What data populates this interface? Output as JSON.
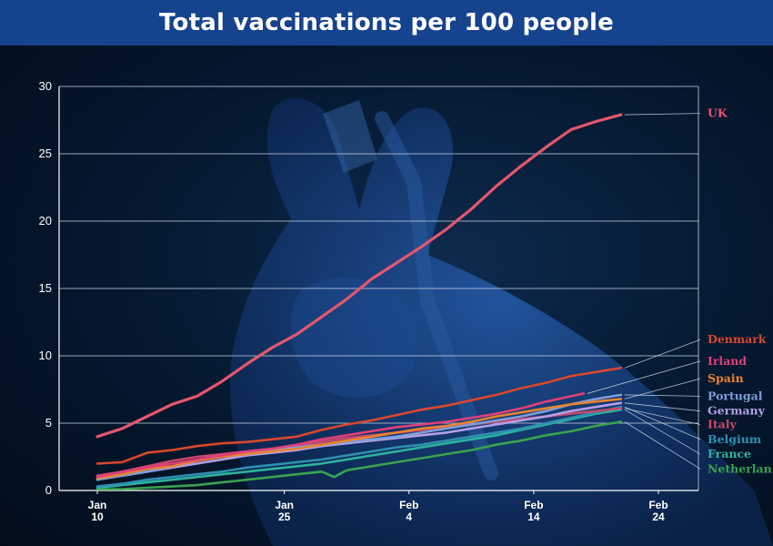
{
  "title": "Total vaccinations per 100 people",
  "chart_data": {
    "type": "line",
    "title": "Total vaccinations per 100 people",
    "xlabel": "",
    "ylabel": "",
    "x_range": [
      10,
      56
    ],
    "ylim": [
      0,
      30
    ],
    "yticks": [
      0,
      5,
      10,
      15,
      20,
      25,
      30
    ],
    "grid": true,
    "legend": "right",
    "xticks": [
      {
        "x": 10,
        "line1": "Jan",
        "line2": "10"
      },
      {
        "x": 25,
        "line1": "Jan",
        "line2": "25"
      },
      {
        "x": 35,
        "line1": "Feb",
        "line2": "4"
      },
      {
        "x": 45,
        "line1": "Feb",
        "line2": "14"
      },
      {
        "x": 55,
        "line1": "Feb",
        "line2": "24"
      }
    ],
    "series": [
      {
        "name": "UK",
        "color": "#e5566e",
        "label_y": 28.0,
        "points": [
          [
            10,
            4.0
          ],
          [
            12,
            4.6
          ],
          [
            14,
            5.5
          ],
          [
            16,
            6.4
          ],
          [
            18,
            7.0
          ],
          [
            20,
            8.1
          ],
          [
            22,
            9.4
          ],
          [
            24,
            10.6
          ],
          [
            26,
            11.6
          ],
          [
            28,
            12.9
          ],
          [
            30,
            14.2
          ],
          [
            32,
            15.7
          ],
          [
            34,
            16.9
          ],
          [
            36,
            18.1
          ],
          [
            38,
            19.4
          ],
          [
            40,
            20.9
          ],
          [
            42,
            22.6
          ],
          [
            44,
            24.1
          ],
          [
            46,
            25.5
          ],
          [
            48,
            26.8
          ],
          [
            50,
            27.4
          ],
          [
            52,
            27.9
          ]
        ]
      },
      {
        "name": "Denmark",
        "color": "#d9472c",
        "label_y": 11.2,
        "points": [
          [
            10,
            2.0
          ],
          [
            12,
            2.1
          ],
          [
            14,
            2.8
          ],
          [
            16,
            3.0
          ],
          [
            18,
            3.3
          ],
          [
            20,
            3.5
          ],
          [
            22,
            3.6
          ],
          [
            24,
            3.8
          ],
          [
            26,
            4.0
          ],
          [
            28,
            4.5
          ],
          [
            30,
            4.9
          ],
          [
            32,
            5.2
          ],
          [
            34,
            5.6
          ],
          [
            36,
            6.0
          ],
          [
            38,
            6.3
          ],
          [
            40,
            6.7
          ],
          [
            42,
            7.1
          ],
          [
            44,
            7.6
          ],
          [
            46,
            8.0
          ],
          [
            48,
            8.5
          ],
          [
            50,
            8.8
          ],
          [
            52,
            9.1
          ]
        ]
      },
      {
        "name": "Irland",
        "color": "#e0407a",
        "label_y": 9.6,
        "points": [
          [
            10,
            1.0
          ],
          [
            12,
            1.4
          ],
          [
            14,
            1.7
          ],
          [
            16,
            2.0
          ],
          [
            18,
            2.3
          ],
          [
            20,
            2.6
          ],
          [
            22,
            2.9
          ],
          [
            24,
            3.1
          ],
          [
            26,
            3.4
          ],
          [
            28,
            3.8
          ],
          [
            30,
            4.1
          ],
          [
            32,
            4.4
          ],
          [
            34,
            4.7
          ],
          [
            36,
            4.9
          ],
          [
            38,
            5.1
          ],
          [
            40,
            5.4
          ],
          [
            42,
            5.7
          ],
          [
            44,
            6.1
          ],
          [
            46,
            6.6
          ],
          [
            48,
            7.0
          ],
          [
            49,
            7.2
          ]
        ]
      },
      {
        "name": "Spain",
        "color": "#e88332",
        "label_y": 8.3,
        "points": [
          [
            10,
            0.9
          ],
          [
            12,
            1.2
          ],
          [
            14,
            1.6
          ],
          [
            16,
            1.8
          ],
          [
            18,
            2.2
          ],
          [
            20,
            2.5
          ],
          [
            22,
            2.7
          ],
          [
            24,
            2.9
          ],
          [
            26,
            3.1
          ],
          [
            28,
            3.4
          ],
          [
            30,
            3.7
          ],
          [
            32,
            4.0
          ],
          [
            34,
            4.3
          ],
          [
            36,
            4.6
          ],
          [
            38,
            4.8
          ],
          [
            40,
            5.1
          ],
          [
            42,
            5.5
          ],
          [
            44,
            5.8
          ],
          [
            46,
            6.1
          ],
          [
            48,
            6.4
          ],
          [
            50,
            6.6
          ],
          [
            52,
            6.8
          ]
        ]
      },
      {
        "name": "Portugal",
        "color": "#7f9ddb",
        "label_y": 7.0,
        "points": [
          [
            10,
            0.8
          ],
          [
            12,
            1.1
          ],
          [
            14,
            1.4
          ],
          [
            16,
            1.8
          ],
          [
            18,
            2.2
          ],
          [
            20,
            2.5
          ],
          [
            22,
            2.8
          ],
          [
            24,
            3.0
          ],
          [
            26,
            3.2
          ],
          [
            28,
            3.4
          ],
          [
            30,
            3.6
          ],
          [
            32,
            3.8
          ],
          [
            34,
            4.0
          ],
          [
            36,
            4.3
          ],
          [
            38,
            4.6
          ],
          [
            40,
            4.9
          ],
          [
            42,
            5.2
          ],
          [
            44,
            5.5
          ],
          [
            46,
            5.9
          ],
          [
            48,
            6.4
          ],
          [
            50,
            6.8
          ],
          [
            52,
            7.1
          ]
        ]
      },
      {
        "name": "Germany",
        "color": "#b4a0e6",
        "label_y": 5.9,
        "points": [
          [
            10,
            0.9
          ],
          [
            12,
            1.1
          ],
          [
            14,
            1.4
          ],
          [
            16,
            1.7
          ],
          [
            18,
            2.0
          ],
          [
            20,
            2.3
          ],
          [
            22,
            2.6
          ],
          [
            24,
            2.8
          ],
          [
            26,
            3.0
          ],
          [
            28,
            3.3
          ],
          [
            30,
            3.5
          ],
          [
            32,
            3.7
          ],
          [
            34,
            3.9
          ],
          [
            36,
            4.1
          ],
          [
            38,
            4.3
          ],
          [
            40,
            4.6
          ],
          [
            42,
            4.9
          ],
          [
            44,
            5.2
          ],
          [
            46,
            5.5
          ],
          [
            48,
            5.9
          ],
          [
            50,
            6.2
          ],
          [
            52,
            6.5
          ]
        ]
      },
      {
        "name": "Italy",
        "color": "#c7486c",
        "label_y": 4.9,
        "points": [
          [
            10,
            1.1
          ],
          [
            12,
            1.4
          ],
          [
            14,
            1.8
          ],
          [
            16,
            2.2
          ],
          [
            18,
            2.5
          ],
          [
            20,
            2.7
          ],
          [
            22,
            2.9
          ],
          [
            24,
            3.1
          ],
          [
            26,
            3.3
          ],
          [
            28,
            3.6
          ],
          [
            30,
            3.9
          ],
          [
            32,
            4.1
          ],
          [
            34,
            4.3
          ],
          [
            36,
            4.5
          ],
          [
            38,
            4.7
          ],
          [
            40,
            4.9
          ],
          [
            42,
            5.1
          ],
          [
            44,
            5.3
          ],
          [
            46,
            5.5
          ],
          [
            48,
            5.7
          ],
          [
            50,
            5.9
          ],
          [
            52,
            6.1
          ]
        ]
      },
      {
        "name": "Belgium",
        "color": "#2f8fb0",
        "label_y": 3.8,
        "points": [
          [
            10,
            0.3
          ],
          [
            12,
            0.5
          ],
          [
            14,
            0.8
          ],
          [
            16,
            1.0
          ],
          [
            18,
            1.2
          ],
          [
            20,
            1.4
          ],
          [
            22,
            1.7
          ],
          [
            24,
            1.9
          ],
          [
            26,
            2.1
          ],
          [
            28,
            2.3
          ],
          [
            30,
            2.6
          ],
          [
            32,
            2.9
          ],
          [
            34,
            3.2
          ],
          [
            36,
            3.4
          ],
          [
            38,
            3.7
          ],
          [
            40,
            4.0
          ],
          [
            42,
            4.3
          ],
          [
            44,
            4.6
          ],
          [
            46,
            5.0
          ],
          [
            48,
            5.4
          ],
          [
            50,
            5.8
          ],
          [
            52,
            6.2
          ]
        ]
      },
      {
        "name": "France",
        "color": "#2db39e",
        "label_y": 2.7,
        "points": [
          [
            10,
            0.2
          ],
          [
            12,
            0.4
          ],
          [
            14,
            0.6
          ],
          [
            16,
            0.8
          ],
          [
            18,
            1.0
          ],
          [
            20,
            1.2
          ],
          [
            22,
            1.4
          ],
          [
            24,
            1.6
          ],
          [
            26,
            1.8
          ],
          [
            28,
            2.0
          ],
          [
            30,
            2.3
          ],
          [
            32,
            2.6
          ],
          [
            34,
            2.9
          ],
          [
            36,
            3.2
          ],
          [
            38,
            3.5
          ],
          [
            40,
            3.8
          ],
          [
            42,
            4.1
          ],
          [
            44,
            4.5
          ],
          [
            46,
            4.9
          ],
          [
            48,
            5.3
          ],
          [
            50,
            5.7
          ],
          [
            52,
            6.0
          ]
        ]
      },
      {
        "name": "Netherlan",
        "color": "#3aa24f",
        "label_y": 1.6,
        "points": [
          [
            10,
            0.1
          ],
          [
            12,
            0.1
          ],
          [
            14,
            0.2
          ],
          [
            16,
            0.3
          ],
          [
            18,
            0.4
          ],
          [
            20,
            0.6
          ],
          [
            22,
            0.8
          ],
          [
            24,
            1.0
          ],
          [
            26,
            1.2
          ],
          [
            28,
            1.4
          ],
          [
            29,
            1.0
          ],
          [
            30,
            1.5
          ],
          [
            32,
            1.8
          ],
          [
            34,
            2.1
          ],
          [
            36,
            2.4
          ],
          [
            38,
            2.7
          ],
          [
            40,
            3.0
          ],
          [
            42,
            3.4
          ],
          [
            44,
            3.7
          ],
          [
            46,
            4.1
          ],
          [
            48,
            4.4
          ],
          [
            50,
            4.8
          ],
          [
            52,
            5.1
          ]
        ]
      }
    ]
  }
}
